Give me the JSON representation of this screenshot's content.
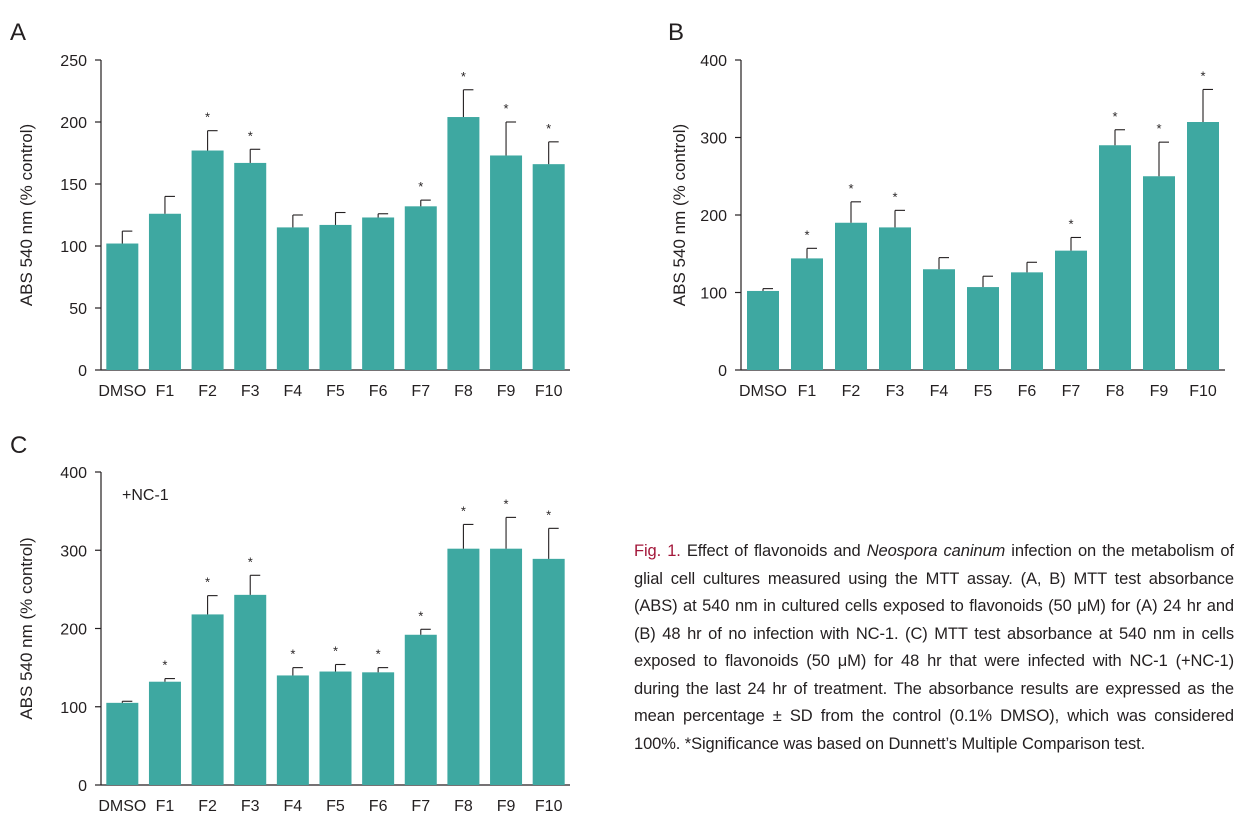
{
  "chart_data": [
    {
      "panel": "A",
      "type": "bar",
      "ylabel": "ABS 540 nm (% control)",
      "xlabel": "",
      "ylim": [
        0,
        250
      ],
      "yticks": [
        0,
        50,
        100,
        150,
        200,
        250
      ],
      "categories": [
        "DMSO",
        "F1",
        "F2",
        "F3",
        "F4",
        "F5",
        "F6",
        "F7",
        "F8",
        "F9",
        "F10"
      ],
      "values": [
        102,
        126,
        177,
        167,
        115,
        117,
        123,
        132,
        204,
        173,
        166
      ],
      "errors": [
        10,
        14,
        16,
        11,
        10,
        10,
        3,
        5,
        22,
        27,
        18
      ],
      "significant": [
        false,
        false,
        true,
        true,
        false,
        false,
        false,
        true,
        true,
        true,
        true
      ],
      "significance_marker": "*",
      "annotation": "",
      "color": "#3ea8a1"
    },
    {
      "panel": "B",
      "type": "bar",
      "ylabel": "ABS 540 nm (% control)",
      "xlabel": "",
      "ylim": [
        0,
        400
      ],
      "yticks": [
        0,
        100,
        200,
        300,
        400
      ],
      "categories": [
        "DMSO",
        "F1",
        "F2",
        "F3",
        "F4",
        "F5",
        "F6",
        "F7",
        "F8",
        "F9",
        "F10"
      ],
      "values": [
        102,
        144,
        190,
        184,
        130,
        107,
        126,
        154,
        290,
        250,
        320
      ],
      "errors": [
        3,
        13,
        27,
        22,
        15,
        14,
        13,
        17,
        20,
        44,
        42
      ],
      "significant": [
        false,
        true,
        true,
        true,
        false,
        false,
        false,
        true,
        true,
        true,
        true
      ],
      "significance_marker": "*",
      "annotation": "",
      "color": "#3ea8a1"
    },
    {
      "panel": "C",
      "type": "bar",
      "ylabel": "ABS 540 nm (% control)",
      "xlabel": "",
      "ylim": [
        0,
        400
      ],
      "yticks": [
        0,
        100,
        200,
        300,
        400
      ],
      "categories": [
        "DMSO",
        "F1",
        "F2",
        "F3",
        "F4",
        "F5",
        "F6",
        "F7",
        "F8",
        "F9",
        "F10"
      ],
      "values": [
        105,
        132,
        218,
        243,
        140,
        145,
        144,
        192,
        302,
        302,
        289
      ],
      "errors": [
        2,
        4,
        24,
        25,
        10,
        9,
        6,
        7,
        31,
        40,
        39
      ],
      "significant": [
        false,
        true,
        true,
        true,
        true,
        true,
        true,
        true,
        true,
        true,
        true
      ],
      "significance_marker": "*",
      "annotation": "+NC-1",
      "color": "#3ea8a1"
    }
  ],
  "caption": {
    "label": "Fig. 1.",
    "text_before_italic": " Effect of flavonoids and ",
    "italic": "Neospora caninum",
    "text_after_italic": " infection on the metabolism of glial cell cultures measured using the MTT assay. (A, B) MTT test absorbance (ABS) at 540 nm in cultured cells exposed to flavonoids (50 μM) for (A) 24 hr and (B) 48 hr of no infection with NC-1. (C) MTT test absorbance at 540 nm in cells exposed to flavonoids (50 μM) for 48 hr that were infected with NC-1 (+NC-1) during the last 24 hr of treatment. The absorbance results are expressed as the mean percentage ± SD from the control (0.1% DMSO), which was considered 100%. *Significance was based on Dunnett’s Multiple Comparison test."
  }
}
